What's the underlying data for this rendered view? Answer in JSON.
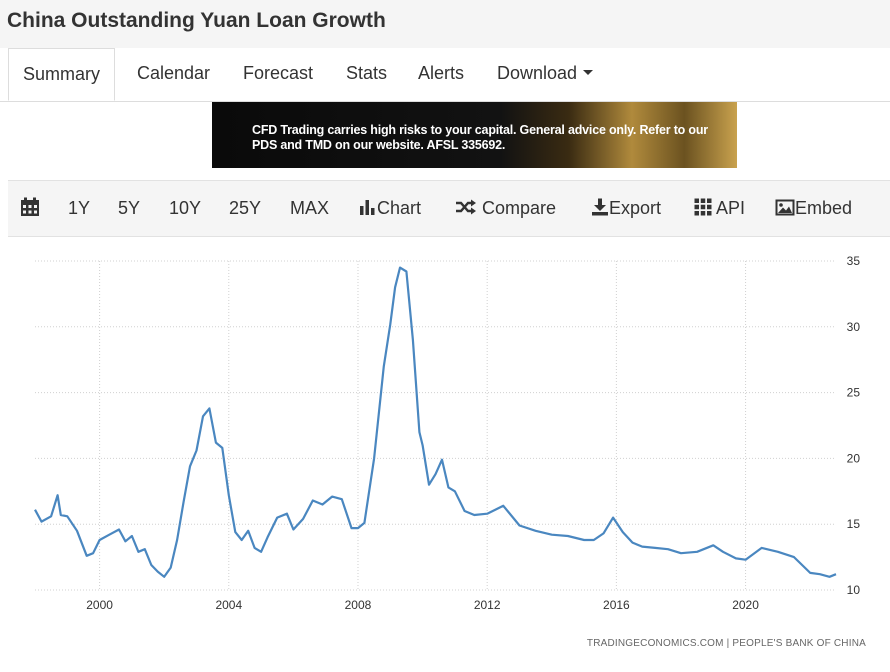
{
  "header": {
    "title": "China Outstanding Yuan Loan Growth"
  },
  "tabs": [
    {
      "label": "Summary"
    },
    {
      "label": "Calendar"
    },
    {
      "label": "Forecast"
    },
    {
      "label": "Stats"
    },
    {
      "label": "Alerts"
    },
    {
      "label": "Download"
    }
  ],
  "ad": {
    "text": "CFD Trading carries high risks to your capital. General advice only. Refer to our PDS and TMD on our website. AFSL 335692."
  },
  "toolbar": {
    "calendar_icon": "calendar-icon",
    "ranges": [
      "1Y",
      "5Y",
      "10Y",
      "25Y",
      "MAX"
    ],
    "chart_label": "Chart",
    "compare_label": "Compare",
    "export_label": "Export",
    "api_label": "API",
    "embed_label": "Embed"
  },
  "colors": {
    "line": "#4a87c0",
    "grid": "#d0d0d0",
    "toolbar_bg": "#f5f5f5"
  },
  "chart_data": {
    "type": "line",
    "title": "",
    "xlabel": "",
    "ylabel": "",
    "source": "TRADINGECONOMICS.COM | PEOPLE'S BANK OF CHINA",
    "xlim": [
      1998.0,
      2022.8
    ],
    "ylim": [
      10,
      35
    ],
    "x_ticks": [
      "2000",
      "2004",
      "2008",
      "2012",
      "2016",
      "2020"
    ],
    "y_ticks": [
      "35",
      "30",
      "25",
      "20",
      "15",
      "10"
    ],
    "y_axis_position": "right",
    "grid": true,
    "legend": "none",
    "series": [
      {
        "x": [
          1998.0,
          1998.2,
          1998.5,
          1998.7,
          1998.8,
          1999.0,
          1999.3,
          1999.6,
          1999.8,
          2000.0,
          2000.3,
          2000.6,
          2000.8,
          2001.0,
          2001.2,
          2001.4,
          2001.6,
          2001.8,
          2002.0,
          2002.2,
          2002.4,
          2002.6,
          2002.8,
          2003.0,
          2003.2,
          2003.4,
          2003.6,
          2003.8,
          2004.0,
          2004.2,
          2004.4,
          2004.6,
          2004.8,
          2005.0,
          2005.2,
          2005.5,
          2005.8,
          2006.0,
          2006.3,
          2006.6,
          2006.9,
          2007.2,
          2007.5,
          2007.8,
          2008.0,
          2008.2,
          2008.5,
          2008.8,
          2009.0,
          2009.15,
          2009.3,
          2009.5,
          2009.7,
          2009.9,
          2010.0,
          2010.2,
          2010.4,
          2010.6,
          2010.8,
          2011.0,
          2011.3,
          2011.6,
          2012.0,
          2012.5,
          2013.0,
          2013.5,
          2014.0,
          2014.5,
          2015.0,
          2015.3,
          2015.6,
          2015.9,
          2016.2,
          2016.5,
          2016.8,
          2017.2,
          2017.6,
          2018.0,
          2018.5,
          2019.0,
          2019.3,
          2019.7,
          2020.0,
          2020.5,
          2021.0,
          2021.5,
          2022.0,
          2022.3,
          2022.6,
          2022.8
        ],
        "y": [
          16.1,
          15.2,
          15.6,
          17.2,
          15.7,
          15.6,
          14.5,
          12.6,
          12.8,
          13.8,
          14.2,
          14.6,
          13.7,
          14.1,
          12.9,
          13.1,
          11.9,
          11.4,
          11.0,
          11.7,
          13.8,
          16.7,
          19.4,
          20.6,
          23.2,
          23.8,
          21.2,
          20.8,
          17.2,
          14.4,
          13.8,
          14.5,
          13.2,
          12.9,
          14.0,
          15.5,
          15.8,
          14.6,
          15.4,
          16.8,
          16.5,
          17.1,
          16.9,
          14.7,
          14.7,
          15.1,
          20.0,
          27.0,
          30.2,
          33.0,
          34.5,
          34.2,
          29.0,
          22.0,
          21.0,
          18.0,
          18.8,
          19.9,
          17.8,
          17.5,
          16.0,
          15.7,
          15.8,
          16.4,
          14.9,
          14.5,
          14.2,
          14.1,
          13.8,
          13.8,
          14.3,
          15.5,
          14.4,
          13.6,
          13.3,
          13.2,
          13.1,
          12.8,
          12.9,
          13.4,
          12.9,
          12.4,
          12.3,
          13.2,
          12.9,
          12.5,
          11.3,
          11.2,
          11.0,
          11.2
        ]
      }
    ]
  }
}
